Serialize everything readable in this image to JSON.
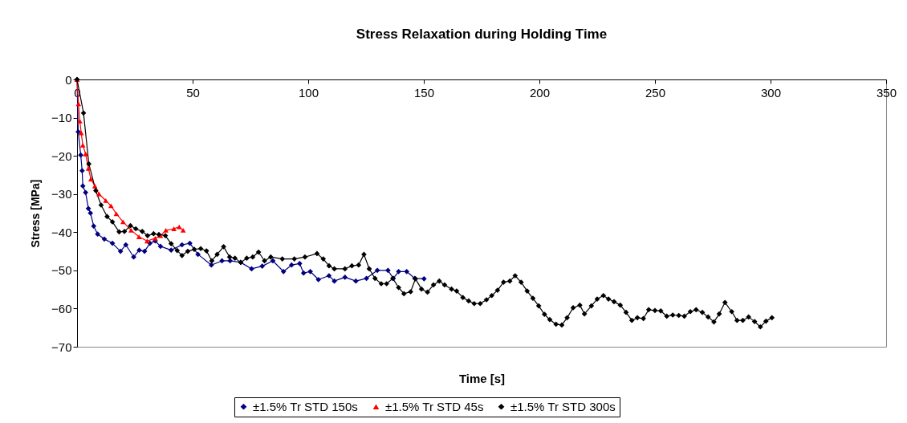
{
  "chart_data": {
    "type": "line",
    "title": "Stress Relaxation during Holding Time",
    "xlabel": "Time [s]",
    "ylabel": "Stress [MPa]",
    "xlim": [
      0,
      350
    ],
    "xticks": [
      0,
      50,
      100,
      150,
      200,
      250,
      300,
      350
    ],
    "ylim": [
      -70,
      0
    ],
    "yticks": [
      -70,
      -60,
      -50,
      -40,
      -30,
      -20,
      -10,
      0
    ],
    "grid": false,
    "legend": "bottom",
    "marker": "diamond",
    "series": [
      {
        "name": "±1.5% Tr STD 150s",
        "color": "#000080",
        "marker": "diamond",
        "x": [
          0,
          0.5,
          1.6,
          2.2,
          2.5,
          3.7,
          4.9,
          5.8,
          7.2,
          8.9,
          11.8,
          15.3,
          18.8,
          21.1,
          24.5,
          26.9,
          29.2,
          31.5,
          33.8,
          36.1,
          40.7,
          45.4,
          48.8,
          52.3,
          58.1,
          62.7,
          66.2,
          70.8,
          75.5,
          80.1,
          84.7,
          89.3,
          92.8,
          96.3,
          98.0,
          100.9,
          104.4,
          109,
          111.3,
          115.9,
          120.6,
          125.2,
          129.9,
          134.5,
          136.8,
          139.1,
          142.6,
          146.1,
          150.1
        ],
        "values": [
          0,
          -13.7,
          -19.8,
          -23.9,
          -27.9,
          -29.6,
          -33.8,
          -35,
          -38.4,
          -40.5,
          -41.8,
          -42.9,
          -45,
          -43.3,
          -46.5,
          -44.7,
          -45,
          -42.9,
          -42.3,
          -43.7,
          -44.7,
          -43.3,
          -42.9,
          -45.8,
          -48.6,
          -47.5,
          -47.5,
          -47.9,
          -49.6,
          -48.9,
          -47.5,
          -50.3,
          -48.6,
          -48.2,
          -50.7,
          -50.3,
          -52.4,
          -51.4,
          -52.8,
          -51.8,
          -52.8,
          -52.1,
          -50,
          -50,
          -52.1,
          -50.3,
          -50.3,
          -52.1,
          -52.2
        ]
      },
      {
        "name": "±1.5% Tr STD 45s",
        "color": "#ff0000",
        "marker": "triangle",
        "x": [
          0,
          0.6,
          1.2,
          1.8,
          2.5,
          3.7,
          4.9,
          6,
          7.7,
          9.5,
          12.4,
          14.7,
          17,
          19.9,
          23.4,
          26.8,
          30.3,
          33.8,
          36.1,
          38.4,
          41.9,
          44.2,
          45.9
        ],
        "values": [
          0,
          -6.4,
          -10.9,
          -14,
          -17.2,
          -19.5,
          -23.3,
          -26.1,
          -27.9,
          -30,
          -31.7,
          -33.1,
          -35.2,
          -37.3,
          -39.5,
          -41.2,
          -42.3,
          -41.6,
          -40.9,
          -39.5,
          -39.1,
          -38.6,
          -39.5
        ]
      },
      {
        "name": "±1.5% Tr STD 300s",
        "color": "#000000",
        "marker": "diamond",
        "x": [
          0,
          2.8,
          5.1,
          8.1,
          10.4,
          13,
          15.3,
          18.2,
          20.5,
          23.1,
          25.4,
          28.2,
          30.5,
          33.1,
          35.4,
          38.2,
          40.7,
          43.3,
          45.4,
          47.9,
          50.7,
          53.5,
          56,
          58.3,
          60.6,
          63.4,
          66,
          68.3,
          70.8,
          73.4,
          76,
          78.5,
          81.1,
          83.8,
          88.8,
          94,
          98.6,
          103.8,
          106.5,
          109,
          111.3,
          115.9,
          118.9,
          121.8,
          124.1,
          126.4,
          128.9,
          131.6,
          133.9,
          136.6,
          139.1,
          141.4,
          144.3,
          146.4,
          149,
          151.6,
          154.2,
          156.7,
          159,
          162,
          164.2,
          166.9,
          169.4,
          171.8,
          174.4,
          177.1,
          179.4,
          181.9,
          184.5,
          187.2,
          189.5,
          192.1,
          194.7,
          197.2,
          199.7,
          202.2,
          204.5,
          207.2,
          209.7,
          212,
          214.6,
          217.5,
          219.5,
          222.5,
          225,
          227.7,
          229.9,
          232.3,
          235,
          237.5,
          240,
          242.4,
          245,
          247.3,
          250,
          252.5,
          255.1,
          257.7,
          260.3,
          262.7,
          265.3,
          267.8,
          270.5,
          273,
          275.5,
          277.8,
          280.3,
          283.2,
          285.5,
          288,
          290.5,
          293.1,
          295.6,
          298,
          300.6
        ],
        "values": [
          0,
          -8.8,
          -22.1,
          -29.1,
          -32.9,
          -35.9,
          -37.3,
          -39.9,
          -39.8,
          -38.3,
          -39.1,
          -39.8,
          -40.9,
          -40.4,
          -40.6,
          -40.9,
          -43,
          -44.8,
          -46.1,
          -45,
          -44.5,
          -44.3,
          -44.9,
          -47.5,
          -45.8,
          -43.8,
          -46.5,
          -46.8,
          -47.9,
          -46.8,
          -46.5,
          -45.2,
          -47.5,
          -46.5,
          -47,
          -47,
          -46.5,
          -45.6,
          -47,
          -48.8,
          -49.6,
          -49.6,
          -48.8,
          -48.6,
          -45.8,
          -49.6,
          -52.1,
          -53.5,
          -53.5,
          -52.1,
          -54.5,
          -56.1,
          -55.6,
          -52.2,
          -54.9,
          -55.7,
          -53.8,
          -52.8,
          -53.8,
          -54.9,
          -55.4,
          -57.1,
          -58,
          -58.7,
          -58.7,
          -57.7,
          -56.6,
          -55.2,
          -53.1,
          -52.8,
          -51.4,
          -53.1,
          -55.4,
          -57.3,
          -59.3,
          -61.5,
          -62.9,
          -64.1,
          -64.3,
          -62.4,
          -59.8,
          -59.1,
          -61.4,
          -59.3,
          -57.5,
          -56.6,
          -57.5,
          -58.2,
          -59.1,
          -61,
          -63.1,
          -62.4,
          -62.6,
          -60.3,
          -60.5,
          -60.6,
          -62,
          -61.7,
          -61.8,
          -62,
          -60.8,
          -60.3,
          -61,
          -62.2,
          -63.5,
          -61.4,
          -58.4,
          -60.8,
          -63.1,
          -63.1,
          -62.2,
          -63.4,
          -64.8,
          -63.3,
          -62.4
        ]
      }
    ]
  }
}
